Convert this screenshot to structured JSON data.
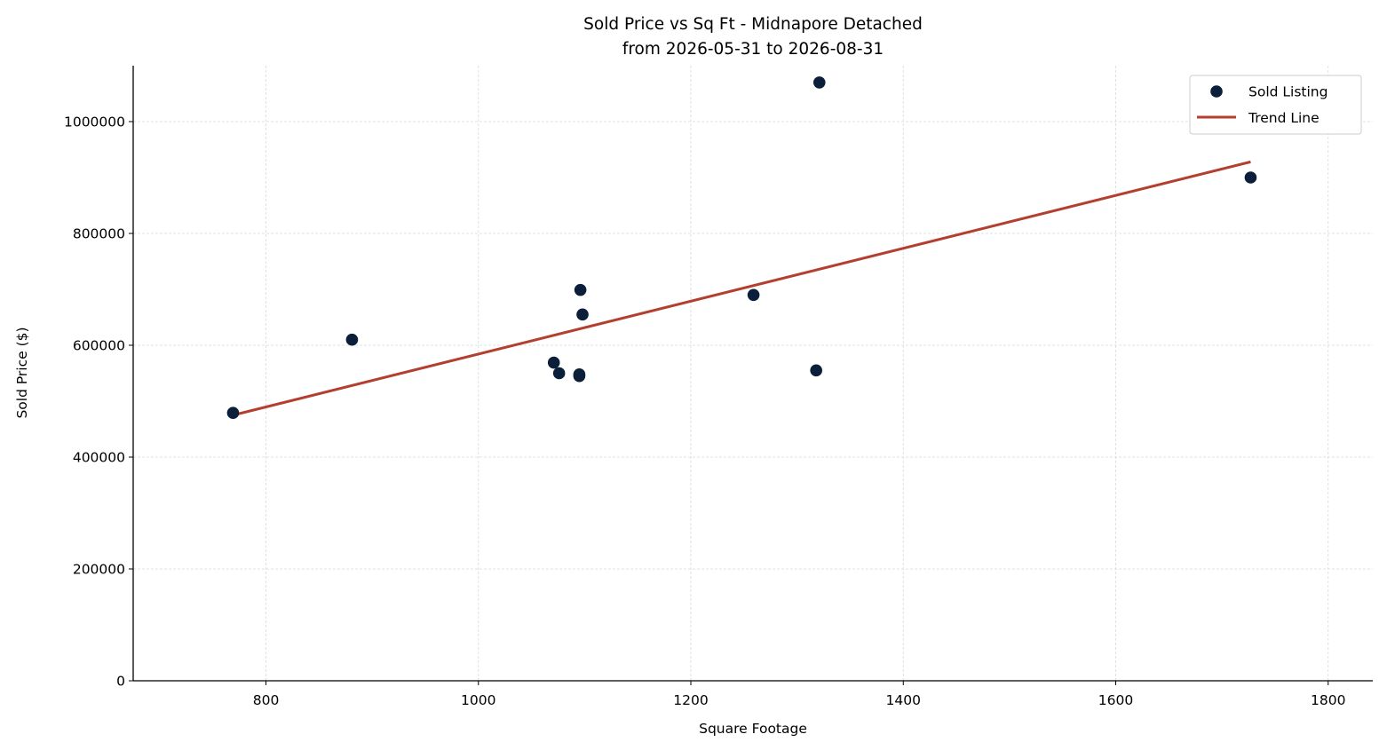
{
  "chart_data": {
    "type": "scatter",
    "title": "Sold Price vs Sq Ft - Midnapore Detached",
    "subtitle": "from 2026-05-31 to 2026-08-31",
    "xlabel": "Square Footage",
    "ylabel": "Sold Price ($)",
    "xlim": [
      675,
      1842
    ],
    "ylim": [
      0,
      1100000
    ],
    "xticks": [
      800,
      1000,
      1200,
      1400,
      1600,
      1800
    ],
    "yticks": [
      0,
      200000,
      400000,
      600000,
      800000,
      1000000
    ],
    "grid": true,
    "legend_position": "top-right",
    "series": [
      {
        "name": "Sold Listing",
        "type": "scatter",
        "color": "#0b1f3a",
        "points": [
          {
            "x": 769,
            "y": 479000
          },
          {
            "x": 881,
            "y": 610000
          },
          {
            "x": 1071,
            "y": 569000
          },
          {
            "x": 1076,
            "y": 550000
          },
          {
            "x": 1095,
            "y": 545000
          },
          {
            "x": 1095,
            "y": 548000
          },
          {
            "x": 1096,
            "y": 699000
          },
          {
            "x": 1098,
            "y": 655000
          },
          {
            "x": 1259,
            "y": 690000
          },
          {
            "x": 1318,
            "y": 555000
          },
          {
            "x": 1321,
            "y": 1070000
          },
          {
            "x": 1727,
            "y": 900000
          }
        ]
      },
      {
        "name": "Trend Line",
        "type": "line",
        "color": "#b53f2f",
        "points": [
          {
            "x": 769,
            "y": 475000
          },
          {
            "x": 1727,
            "y": 928000
          }
        ]
      }
    ]
  }
}
